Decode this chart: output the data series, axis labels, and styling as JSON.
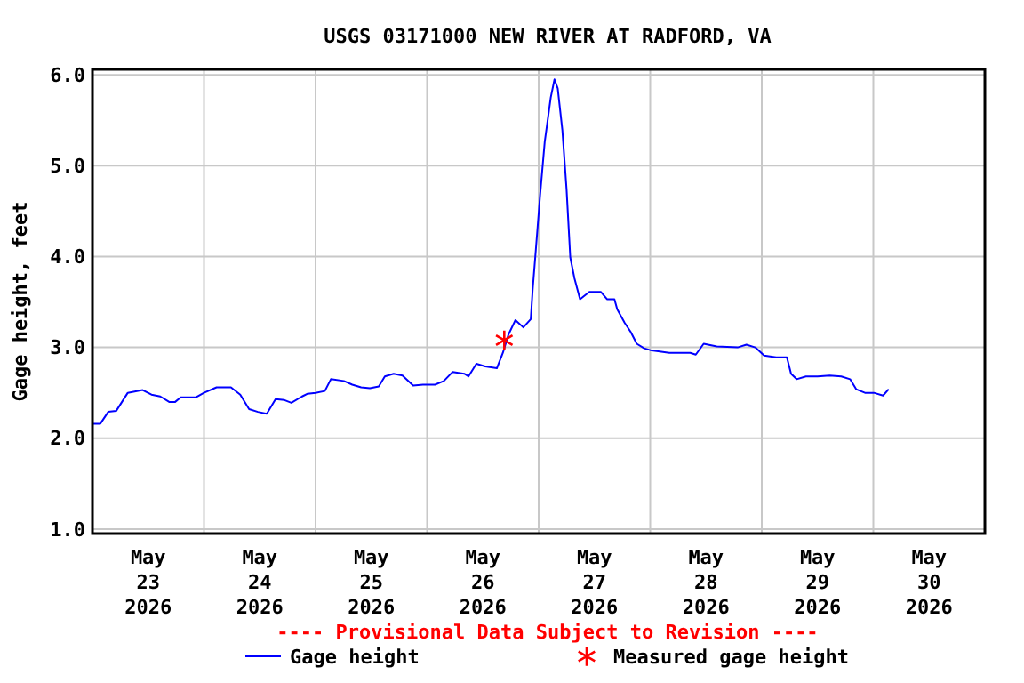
{
  "chart_data": {
    "type": "line",
    "title": "USGS 03171000 NEW RIVER AT RADFORD, VA",
    "ylabel": "Gage height, feet",
    "annotations": [
      "---- Provisional Data Subject to Revision ----"
    ],
    "xlim": [
      "2026-05-23T00:00",
      "2026-05-31T00:00"
    ],
    "xticks": [
      {
        "value": "2026-05-23T12:00",
        "label": "May\n23\n2026"
      },
      {
        "value": "2026-05-24T12:00",
        "label": "May\n24\n2026"
      },
      {
        "value": "2026-05-25T12:00",
        "label": "May\n25\n2026"
      },
      {
        "value": "2026-05-26T12:00",
        "label": "May\n26\n2026"
      },
      {
        "value": "2026-05-27T12:00",
        "label": "May\n27\n2026"
      },
      {
        "value": "2026-05-28T12:00",
        "label": "May\n28\n2026"
      },
      {
        "value": "2026-05-29T12:00",
        "label": "May\n29\n2026"
      },
      {
        "value": "2026-05-30T12:00",
        "label": "May\n30\n2026"
      },
      {
        "value": "2026-05-24T00:00",
        "label": null
      },
      {
        "value": "2026-05-25T00:00",
        "label": null
      },
      {
        "value": "2026-05-26T00:00",
        "label": null
      },
      {
        "value": "2026-05-27T00:00",
        "label": null
      },
      {
        "value": "2026-05-28T00:00",
        "label": null
      },
      {
        "value": "2026-05-29T00:00",
        "label": null
      },
      {
        "value": "2026-05-30T00:00",
        "label": null
      }
    ],
    "ylim": [
      0.95,
      6.06
    ],
    "yticks": [
      {
        "value": 1,
        "label": "1.0"
      },
      {
        "value": 2,
        "label": "2.0"
      },
      {
        "value": 3,
        "label": "3.0"
      },
      {
        "value": 4,
        "label": "4.0"
      },
      {
        "value": 5,
        "label": "5.0"
      },
      {
        "value": 6,
        "label": "6.0"
      }
    ],
    "grid": true,
    "legend": "bottom",
    "series": [
      {
        "name": "Gage height",
        "color": "#0000ff",
        "marker": "none",
        "line_style": "solid",
        "x": [
          "2026-05-23T00:00",
          "2026-05-23T01:42",
          "2026-05-23T03:24",
          "2026-05-23T05:06",
          "2026-05-23T07:36",
          "2026-05-23T10:48",
          "2026-05-23T12:42",
          "2026-05-23T14:36",
          "2026-05-23T16:30",
          "2026-05-23T17:48",
          "2026-05-23T19:00",
          "2026-05-23T22:12",
          "2026-05-24T00:00",
          "2026-05-24T02:42",
          "2026-05-24T05:48",
          "2026-05-24T07:48",
          "2026-05-24T09:42",
          "2026-05-24T11:36",
          "2026-05-24T13:30",
          "2026-05-24T15:24",
          "2026-05-24T17:18",
          "2026-05-24T18:48",
          "2026-05-24T21:06",
          "2026-05-24T22:18",
          "2026-05-25T00:00",
          "2026-05-25T02:00",
          "2026-05-25T03:18",
          "2026-05-25T06:06",
          "2026-05-25T07:54",
          "2026-05-25T09:48",
          "2026-05-25T11:42",
          "2026-05-25T13:36",
          "2026-05-25T14:54",
          "2026-05-25T16:48",
          "2026-05-25T18:42",
          "2026-05-25T21:00",
          "2026-05-25T23:06",
          "2026-05-26T01:42",
          "2026-05-26T03:36",
          "2026-05-26T05:30",
          "2026-05-26T08:00",
          "2026-05-26T08:54",
          "2026-05-26T10:36",
          "2026-05-26T12:30",
          "2026-05-26T15:00",
          "2026-05-26T16:18",
          "2026-05-26T17:30",
          "2026-05-26T19:00",
          "2026-05-26T20:42",
          "2026-05-26T22:18",
          "2026-05-26T22:42",
          "2026-05-26T23:24",
          "2026-05-27T00:18",
          "2026-05-27T01:18",
          "2026-05-27T02:36",
          "2026-05-27T03:24",
          "2026-05-27T04:06",
          "2026-05-27T05:06",
          "2026-05-27T06:00",
          "2026-05-27T06:48",
          "2026-05-27T07:42",
          "2026-05-27T08:54",
          "2026-05-27T10:54",
          "2026-05-27T13:24",
          "2026-05-27T14:42",
          "2026-05-27T16:18",
          "2026-05-27T16:54",
          "2026-05-27T18:30",
          "2026-05-27T19:48",
          "2026-05-27T21:06",
          "2026-05-27T22:42",
          "2026-05-28T00:00",
          "2026-05-28T04:06",
          "2026-05-28T08:36",
          "2026-05-28T09:48",
          "2026-05-28T11:30",
          "2026-05-28T14:18",
          "2026-05-28T18:48",
          "2026-05-28T20:42",
          "2026-05-28T22:36",
          "2026-05-29T00:30",
          "2026-05-29T03:06",
          "2026-05-29T05:24",
          "2026-05-29T06:18",
          "2026-05-29T07:30",
          "2026-05-29T09:30",
          "2026-05-29T12:00",
          "2026-05-29T14:36",
          "2026-05-29T17:06",
          "2026-05-29T19:00",
          "2026-05-29T20:18",
          "2026-05-29T22:12",
          "2026-05-30T00:06",
          "2026-05-30T02:06",
          "2026-05-30T03:18"
        ],
        "values": [
          2.16,
          2.16,
          2.29,
          2.3,
          2.5,
          2.53,
          2.48,
          2.46,
          2.4,
          2.4,
          2.45,
          2.45,
          2.5,
          2.56,
          2.56,
          2.48,
          2.32,
          2.29,
          2.27,
          2.43,
          2.42,
          2.39,
          2.46,
          2.49,
          2.5,
          2.52,
          2.65,
          2.63,
          2.59,
          2.56,
          2.55,
          2.57,
          2.68,
          2.71,
          2.69,
          2.58,
          2.59,
          2.59,
          2.63,
          2.73,
          2.71,
          2.68,
          2.82,
          2.79,
          2.77,
          2.94,
          3.14,
          3.3,
          3.22,
          3.31,
          3.63,
          4.08,
          4.67,
          5.26,
          5.75,
          5.95,
          5.85,
          5.39,
          4.74,
          3.99,
          3.76,
          3.53,
          3.61,
          3.61,
          3.53,
          3.53,
          3.42,
          3.27,
          3.17,
          3.04,
          2.99,
          2.97,
          2.94,
          2.94,
          2.92,
          3.04,
          3.01,
          3.0,
          3.03,
          3.0,
          2.91,
          2.89,
          2.89,
          2.71,
          2.65,
          2.68,
          2.68,
          2.69,
          2.68,
          2.65,
          2.54,
          2.5,
          2.5,
          2.47,
          2.54
        ]
      },
      {
        "name": "Measured gage height",
        "type": "scatter",
        "color": "#ff0000",
        "marker": "cross",
        "x": [
          "2026-05-26T16:36"
        ],
        "values": [
          3.08
        ]
      }
    ]
  }
}
